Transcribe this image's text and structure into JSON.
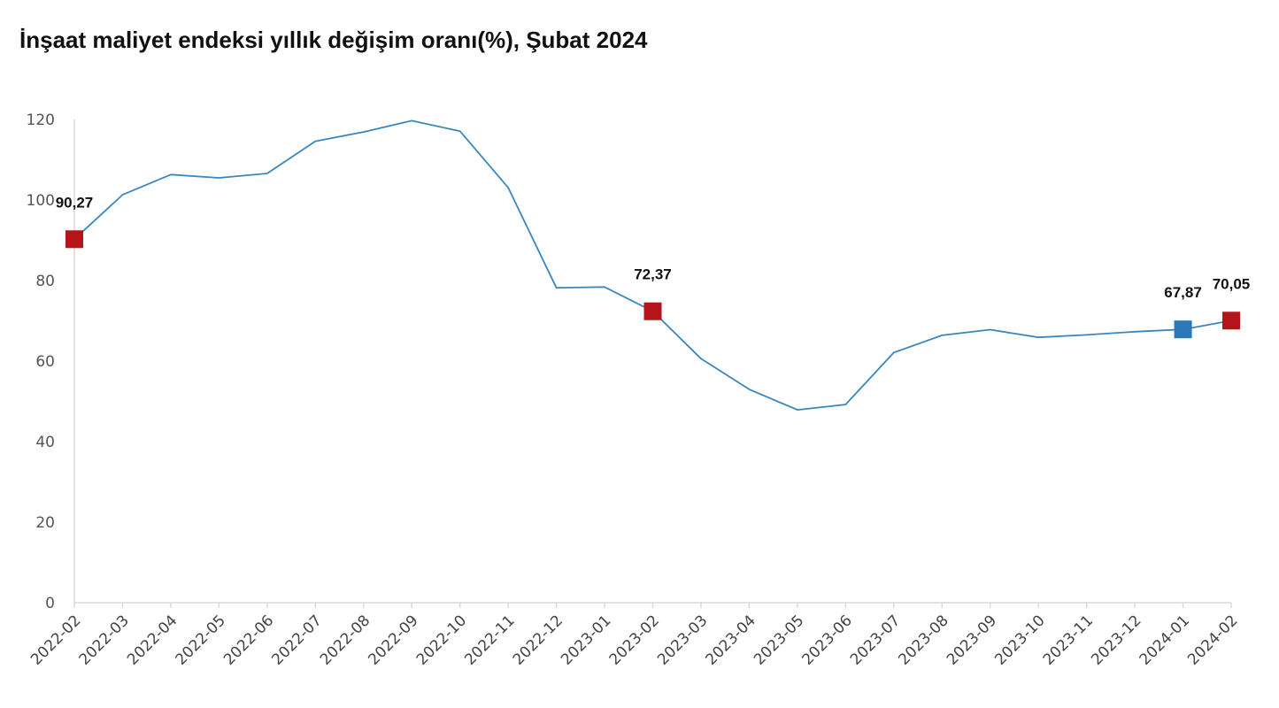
{
  "chart_data": {
    "type": "line",
    "title": "İnşaat maliyet endeksi yıllık değişim oranı(%), Şubat 2024",
    "xlabel": "",
    "ylabel": "",
    "ylim": [
      0,
      120
    ],
    "yticks": [
      0,
      20,
      40,
      60,
      80,
      100,
      120
    ],
    "grid": false,
    "legend": "none",
    "categories": [
      "2022-02",
      "2022-03",
      "2022-04",
      "2022-05",
      "2022-06",
      "2022-07",
      "2022-08",
      "2022-09",
      "2022-10",
      "2022-11",
      "2022-12",
      "2023-01",
      "2023-02",
      "2023-03",
      "2023-04",
      "2023-05",
      "2023-06",
      "2023-07",
      "2023-08",
      "2023-09",
      "2023-10",
      "2023-11",
      "2023-12",
      "2024-01",
      "2024-02"
    ],
    "series": [
      {
        "values": [
          90.27,
          101.3,
          106.3,
          105.5,
          106.6,
          114.6,
          116.9,
          119.7,
          117.1,
          103.1,
          78.2,
          78.4,
          72.37,
          60.6,
          53.0,
          47.9,
          49.2,
          62.1,
          66.4,
          67.8,
          65.9,
          66.5,
          67.3,
          67.87,
          70.05
        ],
        "color": "#3a87bd"
      }
    ],
    "highlighted_points": [
      {
        "category": "2022-02",
        "value": 90.27,
        "label": "90,27",
        "color": "#b5141b"
      },
      {
        "category": "2023-02",
        "value": 72.37,
        "label": "72,37",
        "color": "#b5141b"
      },
      {
        "category": "2024-01",
        "value": 67.87,
        "label": "67,87",
        "color": "#2b79b8"
      },
      {
        "category": "2024-02",
        "value": 70.05,
        "label": "70,05",
        "color": "#b5141b"
      }
    ],
    "colors": {
      "axis": "#d9d9d9",
      "line": "#3a87bd"
    }
  }
}
